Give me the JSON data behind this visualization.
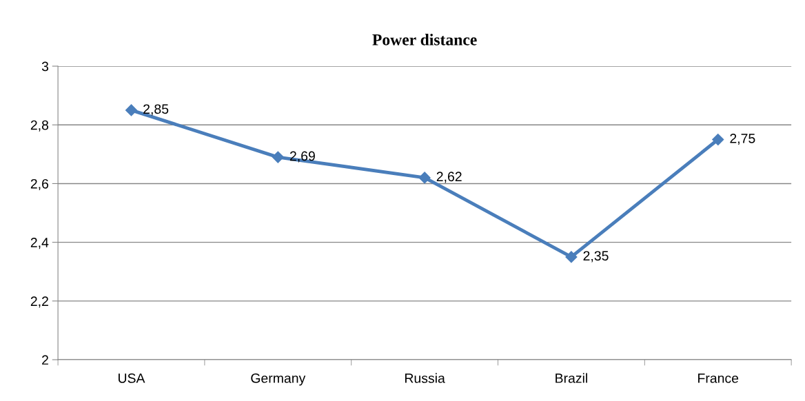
{
  "chart_data": {
    "type": "line",
    "title": "Power distance",
    "categories": [
      "USA",
      "Germany",
      "Russia",
      "Brazil",
      "France"
    ],
    "series": [
      {
        "color": "#4a7ebb",
        "values": [
          2.85,
          2.69,
          2.62,
          2.35,
          2.75
        ],
        "value_labels": [
          "2,85",
          "2,69",
          "2,62",
          "2,35",
          "2,75"
        ]
      }
    ],
    "ylim": [
      2,
      3
    ],
    "yticks": [
      2,
      {
        "value": 2.2,
        "label": "2,2"
      },
      {
        "value": 2.4,
        "label": "2,4"
      },
      {
        "value": 2.6,
        "label": "2,6"
      },
      {
        "value": 2.8,
        "label": "2,8"
      },
      3
    ],
    "grid": "y",
    "marker": "diamond",
    "line_style": "solid",
    "legend": false
  }
}
